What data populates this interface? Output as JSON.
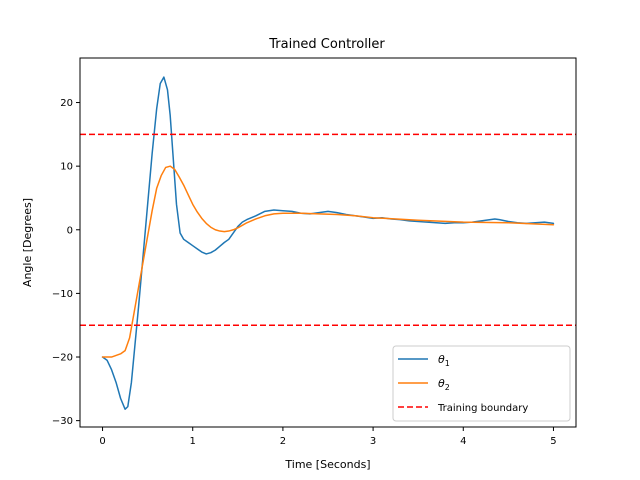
{
  "chart_data": {
    "type": "line",
    "title": "Trained Controller",
    "xlabel": "Time [Seconds]",
    "ylabel": "Angle [Degrees]",
    "xlim": [
      -0.25,
      5.25
    ],
    "ylim": [
      -31,
      27
    ],
    "xticks": [
      0,
      1,
      2,
      3,
      4,
      5
    ],
    "yticks": [
      -30,
      -20,
      -10,
      0,
      10,
      20
    ],
    "xtick_labels": [
      "0",
      "1",
      "2",
      "3",
      "4",
      "5"
    ],
    "ytick_labels": [
      "−30",
      "−20",
      "−10",
      "0",
      "10",
      "20"
    ],
    "grid": false,
    "legend_position": "lower-right",
    "series": [
      {
        "name": "θ1",
        "legend_main": "θ",
        "legend_sub": "1",
        "color": "#1f77b4",
        "style": "solid",
        "x": [
          0,
          0.05,
          0.1,
          0.15,
          0.2,
          0.25,
          0.28,
          0.32,
          0.36,
          0.4,
          0.45,
          0.5,
          0.55,
          0.6,
          0.64,
          0.68,
          0.72,
          0.75,
          0.78,
          0.82,
          0.86,
          0.9,
          0.95,
          1.0,
          1.05,
          1.1,
          1.15,
          1.2,
          1.25,
          1.3,
          1.35,
          1.4,
          1.45,
          1.5,
          1.55,
          1.6,
          1.7,
          1.8,
          1.9,
          2.0,
          2.1,
          2.2,
          2.3,
          2.4,
          2.5,
          2.6,
          2.7,
          2.8,
          2.9,
          3.0,
          3.1,
          3.2,
          3.3,
          3.4,
          3.5,
          3.6,
          3.7,
          3.8,
          3.9,
          4.0,
          4.1,
          4.2,
          4.3,
          4.35,
          4.4,
          4.5,
          4.6,
          4.7,
          4.8,
          4.9,
          5.0
        ],
        "y": [
          -20,
          -20.5,
          -22,
          -24,
          -26.5,
          -28.2,
          -27.8,
          -24,
          -18,
          -12,
          -4,
          4,
          12,
          19,
          23,
          24,
          22,
          18,
          12,
          4,
          -0.5,
          -1.5,
          -2,
          -2.5,
          -3,
          -3.5,
          -3.8,
          -3.6,
          -3.2,
          -2.6,
          -2,
          -1.5,
          -0.5,
          0.5,
          1.2,
          1.6,
          2.2,
          2.9,
          3.1,
          3.0,
          2.9,
          2.6,
          2.5,
          2.7,
          2.9,
          2.7,
          2.4,
          2.2,
          2.0,
          1.8,
          1.9,
          1.7,
          1.6,
          1.4,
          1.3,
          1.2,
          1.1,
          1.0,
          1.1,
          1.1,
          1.2,
          1.4,
          1.6,
          1.7,
          1.6,
          1.3,
          1.1,
          1.0,
          1.1,
          1.2,
          1.0
        ]
      },
      {
        "name": "θ2",
        "legend_main": "θ",
        "legend_sub": "2",
        "color": "#ff7f0e",
        "style": "solid",
        "x": [
          0,
          0.1,
          0.2,
          0.25,
          0.3,
          0.35,
          0.4,
          0.45,
          0.5,
          0.55,
          0.6,
          0.65,
          0.7,
          0.75,
          0.8,
          0.85,
          0.9,
          0.95,
          1.0,
          1.05,
          1.1,
          1.15,
          1.2,
          1.25,
          1.3,
          1.35,
          1.4,
          1.45,
          1.5,
          1.55,
          1.6,
          1.7,
          1.8,
          1.9,
          2.0,
          2.2,
          2.4,
          2.6,
          2.8,
          3.0,
          3.5,
          4.0,
          4.5,
          5.0
        ],
        "y": [
          -20,
          -20,
          -19.5,
          -19,
          -17,
          -13,
          -9,
          -5,
          -1,
          3,
          6.5,
          8.5,
          9.8,
          10,
          9.5,
          8.3,
          7,
          5.5,
          4,
          2.8,
          1.8,
          1.0,
          0.4,
          0,
          -0.2,
          -0.3,
          -0.2,
          0,
          0.3,
          0.7,
          1.1,
          1.7,
          2.2,
          2.5,
          2.6,
          2.6,
          2.5,
          2.4,
          2.2,
          1.9,
          1.5,
          1.2,
          1.1,
          0.8
        ]
      },
      {
        "name": "Training boundary",
        "color": "#ff0000",
        "style": "dashed",
        "hlines": [
          15,
          -15
        ]
      }
    ]
  }
}
